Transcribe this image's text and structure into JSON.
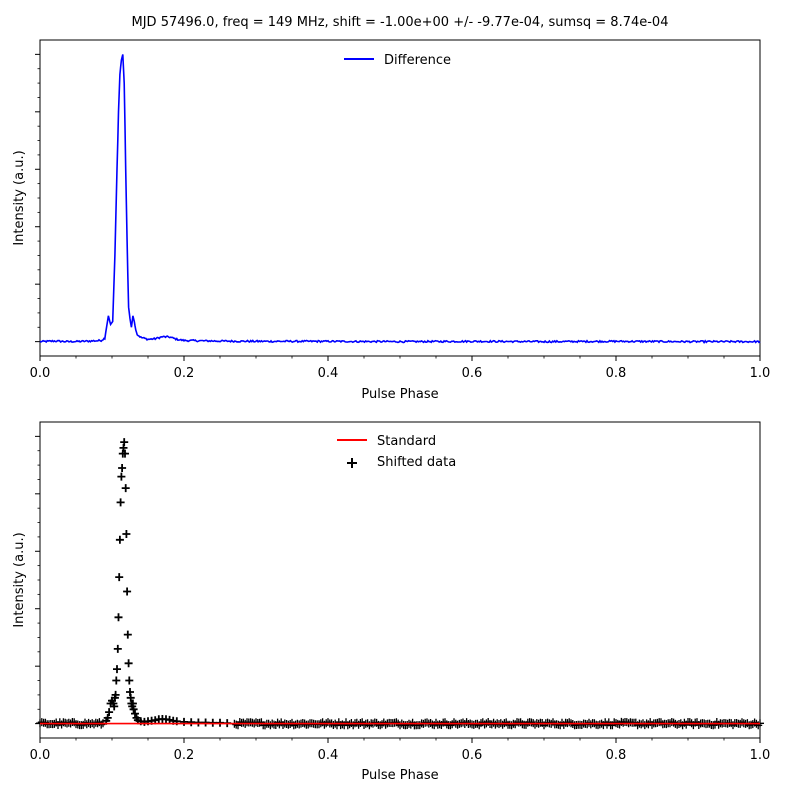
{
  "figure": {
    "suptitle": "MJD 57496.0, freq = 149 MHz, shift = -1.00e+00 +/- -9.77e-04, sumsq = 8.74e-04"
  },
  "chart_data": [
    {
      "type": "line",
      "xlabel": "Pulse Phase",
      "ylabel": "Intensity (a.u.)",
      "xlim": [
        0,
        1
      ],
      "ylim": [
        -0.05,
        1.05
      ],
      "x_ticks": [
        "0.0",
        "0.2",
        "0.4",
        "0.6",
        "0.8",
        "1.0"
      ],
      "grid": false,
      "legend": "top-center",
      "series": [
        {
          "name": "Difference",
          "color": "#0000ff",
          "x": [
            0,
            0.02,
            0.04,
            0.06,
            0.07,
            0.085,
            0.09,
            0.095,
            0.098,
            0.101,
            0.104,
            0.107,
            0.109,
            0.111,
            0.113,
            0.115,
            0.117,
            0.119,
            0.121,
            0.123,
            0.125,
            0.127,
            0.129,
            0.131,
            0.133,
            0.135,
            0.14,
            0.15,
            0.16,
            0.17,
            0.18,
            0.19,
            0.2,
            0.22,
            0.25,
            0.3,
            0.4,
            0.5,
            0.6,
            0.7,
            0.8,
            0.9,
            1.0
          ],
          "y": [
            0.0,
            0.002,
            0.0,
            0.001,
            0.002,
            0.004,
            0.012,
            0.09,
            0.06,
            0.07,
            0.3,
            0.6,
            0.8,
            0.93,
            0.98,
            1.0,
            0.9,
            0.6,
            0.35,
            0.12,
            0.08,
            0.05,
            0.09,
            0.07,
            0.04,
            0.025,
            0.015,
            0.008,
            0.01,
            0.017,
            0.016,
            0.008,
            0.004,
            0.003,
            0.002,
            0.001,
            0.001,
            0.0,
            0.001,
            0.0,
            0.001,
            0.0,
            0.0
          ]
        }
      ]
    },
    {
      "type": "scatter",
      "xlabel": "Pulse Phase",
      "ylabel": "Intensity (a.u.)",
      "xlim": [
        0,
        1
      ],
      "ylim": [
        -0.05,
        1.05
      ],
      "x_ticks": [
        "0.0",
        "0.2",
        "0.4",
        "0.6",
        "0.8",
        "1.0"
      ],
      "grid": false,
      "legend": "top-center",
      "series": [
        {
          "name": "Standard",
          "type": "line",
          "color": "#ff0000",
          "x": [
            0,
            0.2,
            0.4,
            0.6,
            0.8,
            1.0
          ],
          "y": [
            0,
            0,
            0,
            0,
            0,
            0
          ]
        },
        {
          "name": "Shifted data",
          "type": "scatter",
          "marker": "plus",
          "color": "#000000",
          "x": [
            0.092,
            0.094,
            0.096,
            0.098,
            0.1,
            0.102,
            0.103,
            0.104,
            0.105,
            0.106,
            0.107,
            0.108,
            0.109,
            0.11,
            0.111,
            0.112,
            0.113,
            0.114,
            0.115,
            0.116,
            0.117,
            0.118,
            0.119,
            0.12,
            0.121,
            0.122,
            0.123,
            0.124,
            0.125,
            0.126,
            0.127,
            0.128,
            0.129,
            0.13,
            0.132,
            0.134,
            0.136,
            0.14,
            0.145,
            0.15,
            0.155,
            0.16,
            0.165,
            0.17,
            0.175,
            0.18,
            0.185,
            0.19,
            0.2,
            0.21,
            0.22,
            0.23,
            0.24,
            0.25,
            0.26
          ],
          "y": [
            0.01,
            0.02,
            0.04,
            0.07,
            0.08,
            0.07,
            0.06,
            0.09,
            0.1,
            0.15,
            0.19,
            0.26,
            0.37,
            0.51,
            0.64,
            0.77,
            0.86,
            0.89,
            0.94,
            0.96,
            0.98,
            0.94,
            0.82,
            0.66,
            0.46,
            0.31,
            0.21,
            0.15,
            0.11,
            0.09,
            0.07,
            0.06,
            0.07,
            0.05,
            0.035,
            0.02,
            0.012,
            0.008,
            0.006,
            0.008,
            0.01,
            0.012,
            0.015,
            0.016,
            0.015,
            0.013,
            0.01,
            0.008,
            0.006,
            0.005,
            0.004,
            0.004,
            0.003,
            0.003,
            0.002
          ]
        }
      ]
    }
  ]
}
